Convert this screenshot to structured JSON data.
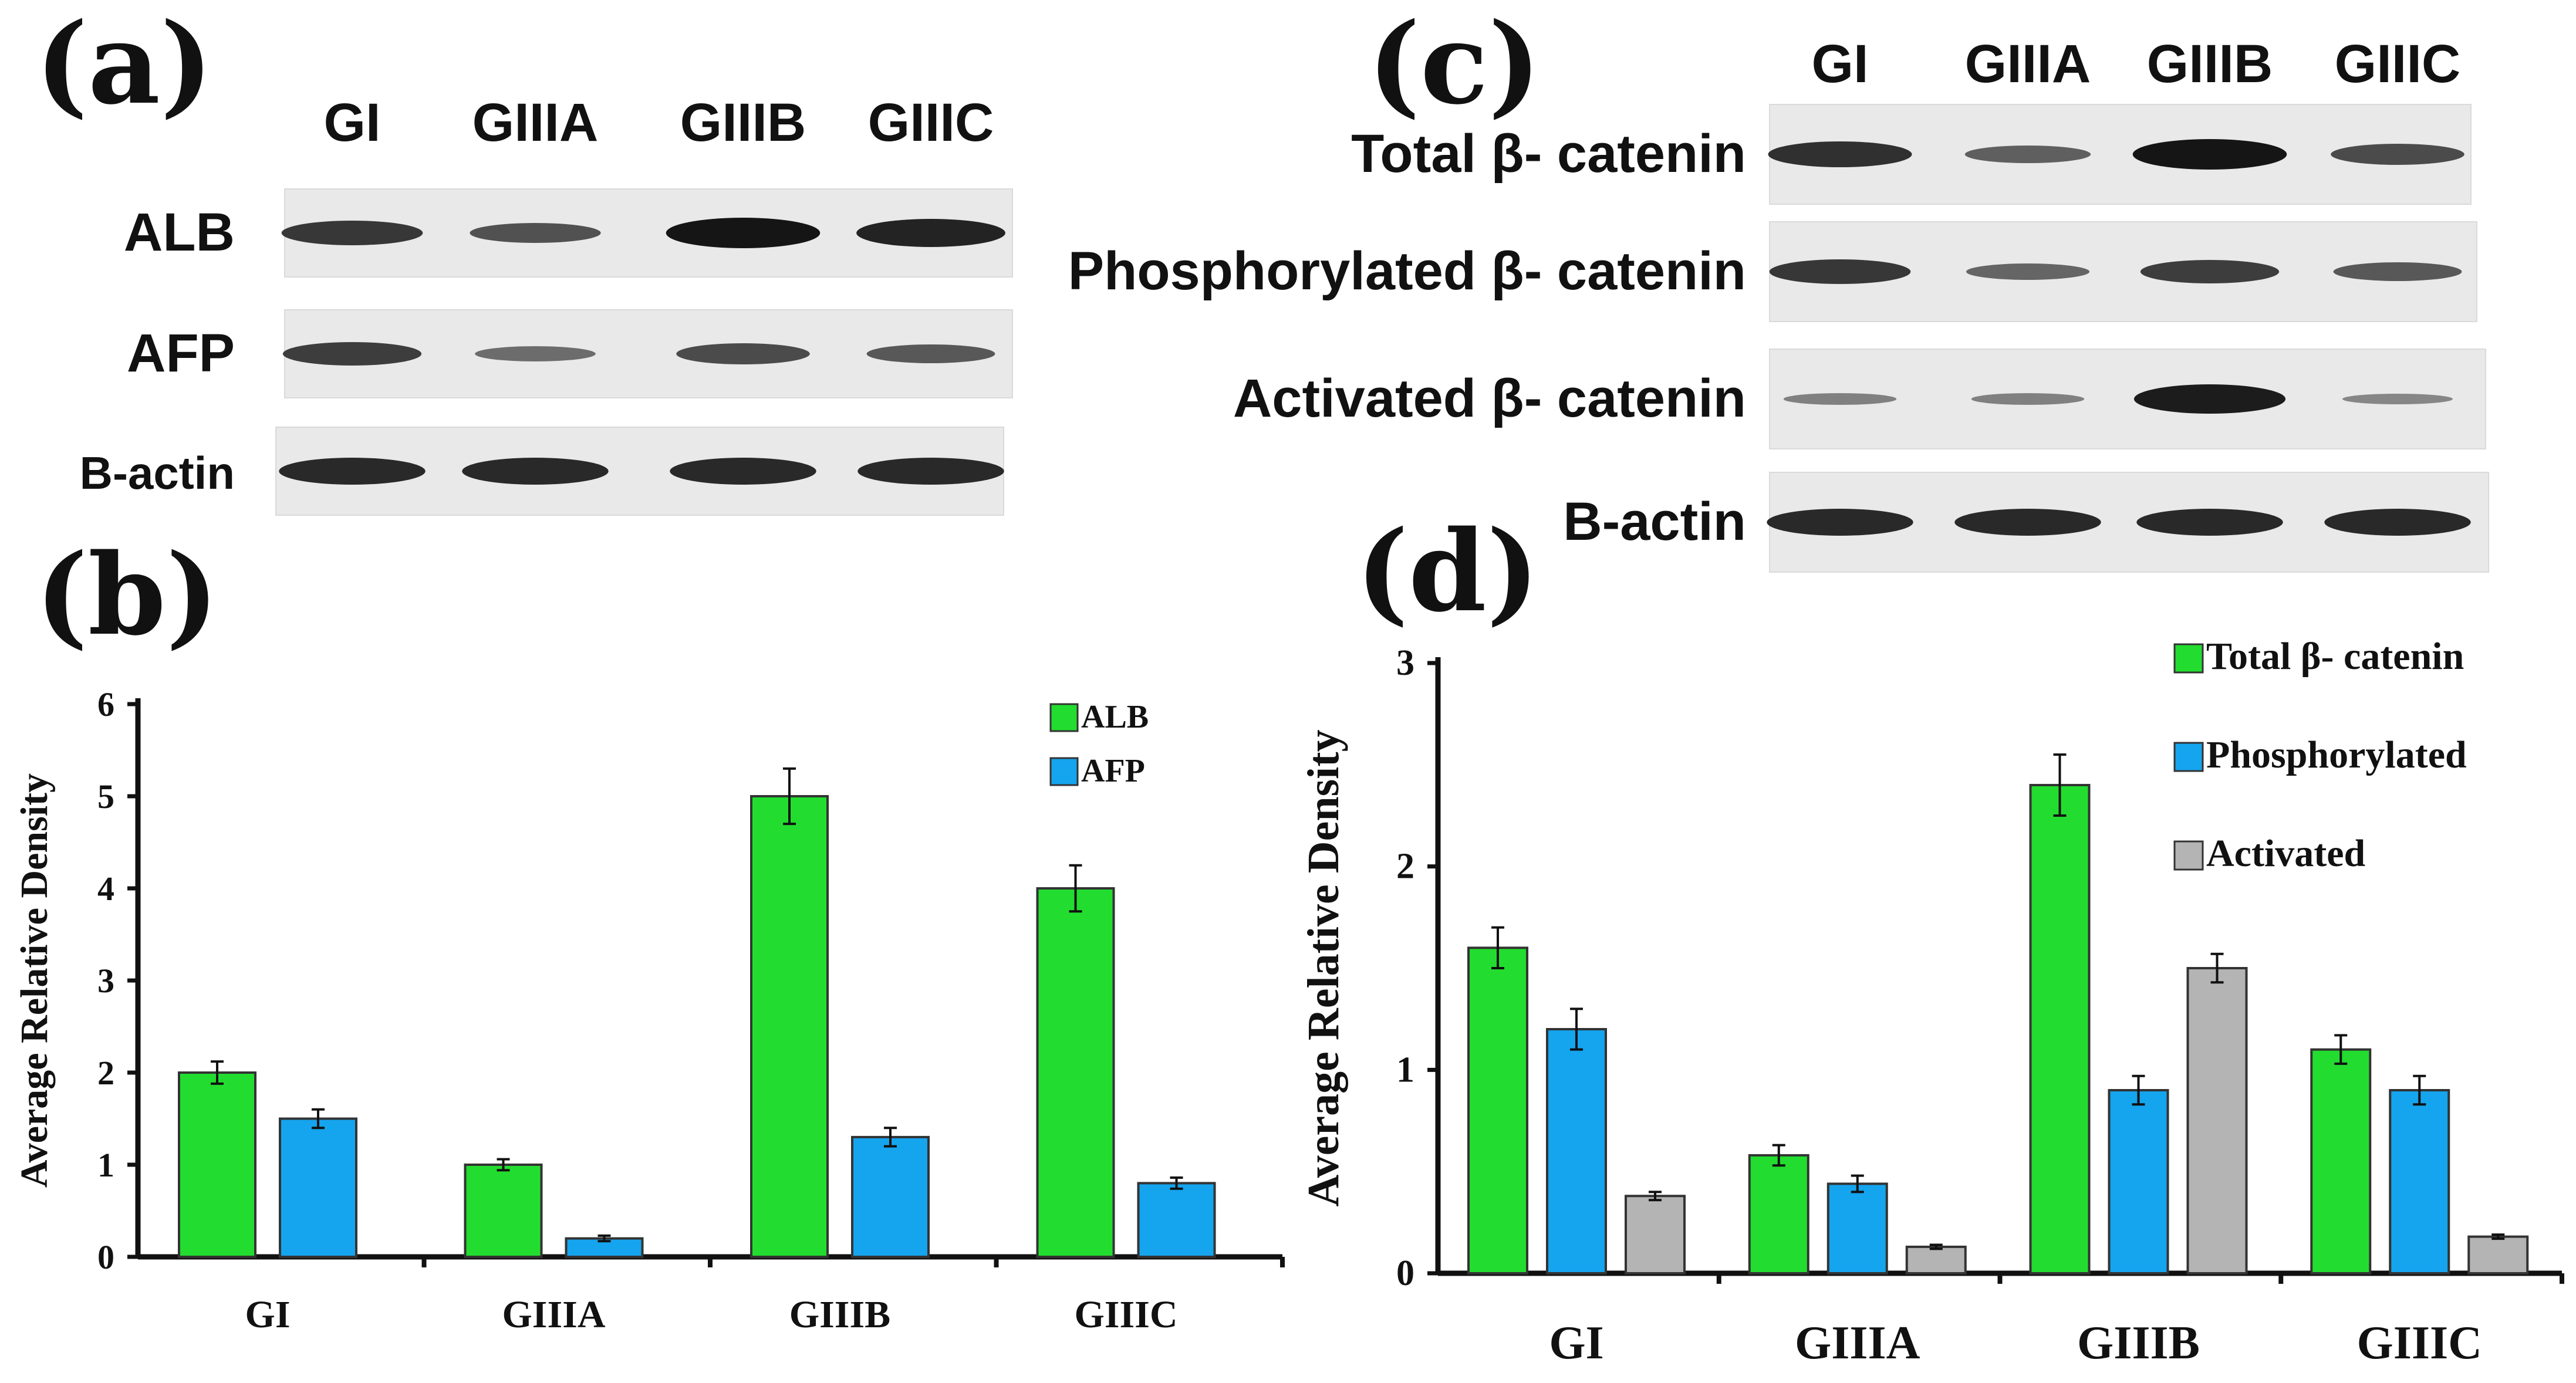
{
  "panel_labels": {
    "a": "(a)",
    "b": "(b)",
    "c": "(c)",
    "d": "(d)"
  },
  "blot_a": {
    "lanes": [
      "GI",
      "GIIIA",
      "GIIIB",
      "GIIIC"
    ],
    "rows": [
      {
        "label": "ALB",
        "band_intensity": [
          0.75,
          0.55,
          1.0,
          0.9
        ]
      },
      {
        "label": "AFP",
        "band_intensity": [
          0.7,
          0.35,
          0.6,
          0.5
        ]
      },
      {
        "label": "B-actin",
        "band_intensity": [
          0.85,
          0.85,
          0.85,
          0.85
        ]
      }
    ]
  },
  "blot_c": {
    "lanes": [
      "GI",
      "GIIIA",
      "GIIIB",
      "GIIIC"
    ],
    "rows": [
      {
        "label": "Total β- catenin",
        "band_intensity": [
          0.8,
          0.45,
          1.0,
          0.6
        ]
      },
      {
        "label": "Phosphorylated β- catenin",
        "band_intensity": [
          0.75,
          0.4,
          0.7,
          0.5
        ]
      },
      {
        "label": "Activated β- catenin",
        "band_intensity": [
          0.2,
          0.2,
          0.95,
          0.15
        ]
      },
      {
        "label": "B-actin",
        "band_intensity": [
          0.85,
          0.85,
          0.85,
          0.85
        ]
      }
    ]
  },
  "colors": {
    "green": "#22dd2f",
    "blue": "#15a4ee",
    "gray": "#b4b4b4"
  },
  "chart_data": [
    {
      "panel": "b",
      "type": "bar",
      "categories": [
        "GI",
        "GIIIA",
        "GIIIB",
        "GIIIC"
      ],
      "ylabel": "Average Relative Density",
      "ylim": [
        0,
        6
      ],
      "yticks": [
        "0",
        "1",
        "2",
        "3",
        "4",
        "5",
        "6"
      ],
      "legend_position": "top-right",
      "series": [
        {
          "name": "ALB",
          "values": [
            2.0,
            1.0,
            5.0,
            4.0
          ],
          "errors": [
            0.12,
            0.06,
            0.3,
            0.25
          ]
        },
        {
          "name": "AFP",
          "values": [
            1.5,
            0.2,
            1.3,
            0.8
          ],
          "errors": [
            0.1,
            0.03,
            0.1,
            0.06
          ]
        }
      ]
    },
    {
      "panel": "d",
      "type": "bar",
      "categories": [
        "GI",
        "GIIIA",
        "GIIIB",
        "GIIIC"
      ],
      "ylabel": "Average Relative Density",
      "ylim": [
        0,
        3
      ],
      "yticks": [
        "0",
        "1",
        "2",
        "3"
      ],
      "legend_position": "top-right",
      "series": [
        {
          "name": "Total β- catenin",
          "values": [
            1.6,
            0.58,
            2.4,
            1.1
          ],
          "errors": [
            0.1,
            0.05,
            0.15,
            0.07
          ]
        },
        {
          "name": "Phosphorylated",
          "values": [
            1.2,
            0.44,
            0.9,
            0.9
          ],
          "errors": [
            0.1,
            0.04,
            0.07,
            0.07
          ]
        },
        {
          "name": "Activated",
          "values": [
            0.38,
            0.13,
            1.5,
            0.18
          ],
          "errors": [
            0.02,
            0.01,
            0.07,
            0.01
          ]
        }
      ]
    }
  ]
}
